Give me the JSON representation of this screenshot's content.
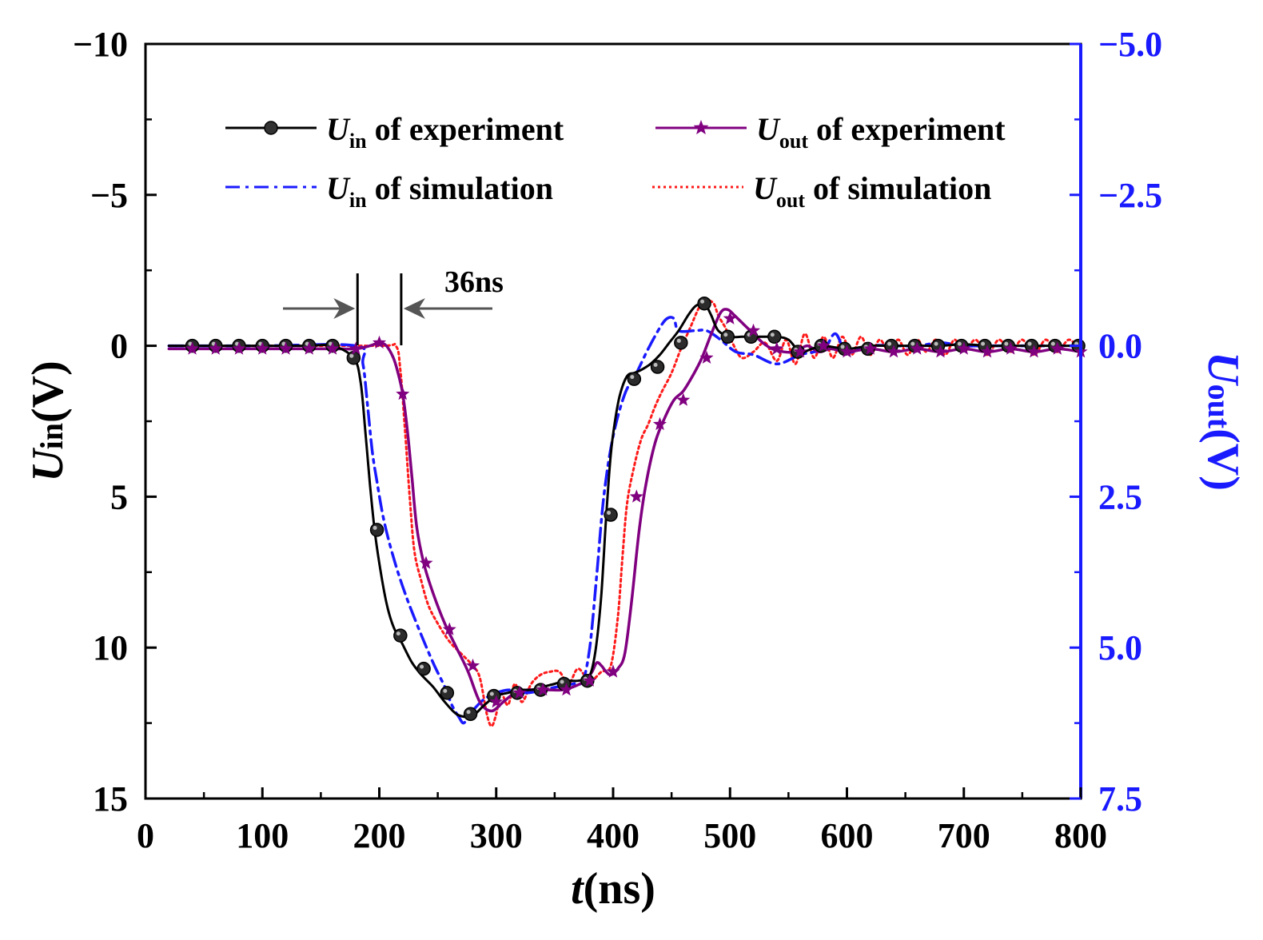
{
  "chart_data": {
    "type": "line",
    "title": "",
    "xlabel": {
      "italic": "t",
      "rest": "(ns)"
    },
    "ylabel_left": {
      "italic": "U",
      "sub": "in",
      "rest": "(V)"
    },
    "ylabel_right": {
      "italic": "U",
      "sub": "out",
      "rest": "(V)"
    },
    "xlim": [
      0,
      800
    ],
    "ylim_left": [
      -10,
      15
    ],
    "ylim_right": [
      -5.0,
      7.5
    ],
    "x_ticks": [
      "0",
      "100",
      "200",
      "300",
      "400",
      "500",
      "600",
      "700",
      "800"
    ],
    "y_left_ticks": [
      "−10",
      "−5",
      "0",
      "5",
      "10",
      "15"
    ],
    "y_right_ticks": [
      "−5.0",
      "−2.5",
      "0.0",
      "2.5",
      "5.0",
      "7.5"
    ],
    "legend_position": "top",
    "annotation": {
      "label": "36ns",
      "t_start": 180,
      "t_end": 216
    },
    "colors": {
      "axis_left": "#000000",
      "axis_right": "#1a1aff",
      "uin_exp": "#000000",
      "uout_exp": "#800080",
      "uin_sim": "#1a1aff",
      "uout_sim": "#ff1a1a"
    },
    "series": [
      {
        "id": "uin_exp",
        "name": "of experiment",
        "sym": "U",
        "sub": "in",
        "axis": "left",
        "style": "solid-dots",
        "x": [
          20,
          40,
          60,
          80,
          100,
          120,
          140,
          160,
          178,
          184,
          188,
          192,
          196,
          200,
          206,
          212,
          220,
          228,
          236,
          246,
          256,
          266,
          276,
          282,
          290,
          300,
          310,
          320,
          330,
          340,
          350,
          360,
          370,
          378,
          382,
          386,
          390,
          394,
          398,
          402,
          406,
          412,
          418,
          424,
          432,
          440,
          448,
          456,
          464,
          470,
          476,
          480,
          484,
          490,
          500,
          510,
          520,
          530,
          540,
          550,
          560,
          570,
          580,
          600,
          620,
          640,
          660,
          680,
          700,
          720,
          740,
          760,
          780,
          800
        ],
        "y": [
          0,
          0,
          0,
          0,
          0,
          0,
          0,
          0,
          0.4,
          1.2,
          2.8,
          4.6,
          6.1,
          7.2,
          8.5,
          9.3,
          9.9,
          10.5,
          10.9,
          11.3,
          11.8,
          12.2,
          12.3,
          12.2,
          11.9,
          11.6,
          11.5,
          11.4,
          11.4,
          11.3,
          11.2,
          11.1,
          11.1,
          11.0,
          10.7,
          9.8,
          8.2,
          5.7,
          3.6,
          2.4,
          1.6,
          1.0,
          0.9,
          0.8,
          0.6,
          0.3,
          -0.1,
          -0.5,
          -1.0,
          -1.3,
          -1.4,
          -1.3,
          -1.0,
          -0.5,
          -0.3,
          -0.3,
          -0.3,
          -0.3,
          -0.3,
          -0.2,
          0.2,
          0.1,
          0,
          0.1,
          0,
          0,
          0,
          0,
          -0.05,
          0,
          0,
          0,
          0,
          0
        ],
        "markers_x": [
          40,
          60,
          80,
          100,
          120,
          140,
          160,
          178,
          198,
          218,
          238,
          258,
          278,
          298,
          318,
          338,
          358,
          378,
          398,
          418,
          438,
          458,
          478,
          498,
          518,
          538,
          558,
          578,
          598,
          618,
          638,
          658,
          678,
          698,
          718,
          738,
          758,
          778,
          798
        ],
        "markers_y": [
          0,
          0,
          0,
          0,
          0,
          0,
          0,
          0.4,
          6.1,
          9.6,
          10.7,
          11.5,
          12.2,
          11.6,
          11.5,
          11.4,
          11.2,
          11.1,
          5.6,
          1.1,
          0.7,
          -0.1,
          -1.4,
          -0.3,
          -0.3,
          -0.3,
          0.2,
          0,
          0.1,
          0.1,
          0,
          0,
          0,
          0,
          0,
          0,
          0,
          0,
          0
        ]
      },
      {
        "id": "uout_exp",
        "name": "of experiment",
        "sym": "U",
        "sub": "out",
        "axis": "right",
        "style": "solid-stars",
        "x": [
          20,
          40,
          60,
          80,
          100,
          120,
          140,
          160,
          180,
          192,
          200,
          206,
          212,
          216,
          220,
          224,
          228,
          232,
          238,
          246,
          256,
          266,
          276,
          286,
          296,
          306,
          316,
          326,
          336,
          346,
          356,
          366,
          376,
          382,
          386,
          390,
          394,
          398,
          404,
          410,
          416,
          422,
          428,
          436,
          444,
          452,
          460,
          468,
          476,
          484,
          492,
          498,
          504,
          512,
          520,
          528,
          536,
          546,
          556,
          566,
          576,
          586,
          600,
          620,
          640,
          660,
          680,
          700,
          720,
          740,
          760,
          780,
          800
        ],
        "y": [
          0.05,
          0.05,
          0.05,
          0.05,
          0.05,
          0.05,
          0.05,
          0.05,
          0.05,
          0.0,
          -0.05,
          0.0,
          0.2,
          0.45,
          0.8,
          1.4,
          2.2,
          3.0,
          3.6,
          4.1,
          4.6,
          5.0,
          5.4,
          5.9,
          6.05,
          5.9,
          5.75,
          5.7,
          5.7,
          5.7,
          5.7,
          5.65,
          5.55,
          5.4,
          5.25,
          5.3,
          5.4,
          5.45,
          5.35,
          5.1,
          4.2,
          3.1,
          2.3,
          1.6,
          1.2,
          0.9,
          0.75,
          0.5,
          0.2,
          -0.2,
          -0.55,
          -0.6,
          -0.5,
          -0.35,
          -0.2,
          -0.05,
          0.05,
          0.1,
          0.1,
          0.0,
          0.1,
          0.05,
          0.1,
          0.05,
          0.1,
          0.05,
          0.1,
          0.05,
          0.1,
          0.05,
          0.1,
          0.05,
          0.1
        ],
        "markers_x": [
          40,
          60,
          80,
          100,
          120,
          140,
          160,
          180,
          200,
          220,
          240,
          260,
          280,
          300,
          320,
          340,
          360,
          380,
          400,
          420,
          440,
          460,
          480,
          500,
          520,
          540,
          560,
          580,
          600,
          620,
          640,
          660,
          680,
          700,
          720,
          740,
          760,
          780,
          800
        ],
        "markers_y": [
          0.05,
          0.05,
          0.05,
          0.05,
          0.05,
          0.05,
          0.05,
          0.05,
          -0.05,
          0.8,
          3.6,
          4.7,
          5.3,
          5.9,
          5.75,
          5.7,
          5.7,
          5.55,
          5.4,
          2.5,
          1.3,
          0.9,
          0.2,
          -0.45,
          -0.25,
          0.05,
          0.1,
          0.0,
          0.1,
          0.05,
          0.1,
          0.05,
          0.1,
          0.05,
          0.1,
          0.05,
          0.1,
          0.05,
          0.1
        ]
      },
      {
        "id": "uin_sim",
        "name": "of simulation",
        "sym": "U",
        "sub": "in",
        "axis": "left",
        "style": "dashdot",
        "x": [
          20,
          100,
          180,
          186,
          190,
          194,
          198,
          204,
          212,
          222,
          234,
          246,
          256,
          262,
          268,
          272,
          276,
          282,
          290,
          300,
          312,
          326,
          340,
          352,
          366,
          374,
          380,
          386,
          392,
          400,
          410,
          420,
          430,
          440,
          446,
          452,
          456,
          470,
          480,
          492,
          505,
          520,
          540,
          560,
          580,
          590,
          600,
          620,
          640,
          660,
          680,
          700,
          720,
          740,
          760,
          780,
          800
        ],
        "y": [
          0,
          0,
          0,
          0.6,
          2.0,
          3.5,
          4.5,
          5.8,
          7.0,
          8.2,
          9.4,
          10.5,
          11.3,
          11.9,
          12.3,
          12.5,
          12.3,
          12.0,
          11.7,
          11.5,
          11.4,
          11.5,
          11.4,
          11.3,
          11.2,
          11.1,
          10.0,
          7.6,
          5.0,
          3.0,
          1.6,
          0.9,
          0.1,
          -0.6,
          -0.9,
          -0.9,
          -0.5,
          -0.5,
          -0.5,
          -0.2,
          0.2,
          0.3,
          0.6,
          0.3,
          0.1,
          -0.4,
          0.2,
          0,
          0,
          0,
          -0.1,
          0,
          0,
          0,
          0,
          0,
          0
        ]
      },
      {
        "id": "uout_sim",
        "name": "of simulation",
        "sym": "U",
        "sub": "out",
        "axis": "right",
        "style": "dotted",
        "x": [
          20,
          100,
          200,
          214,
          218,
          222,
          226,
          230,
          236,
          242,
          250,
          260,
          270,
          280,
          286,
          292,
          296,
          300,
          304,
          310,
          316,
          322,
          330,
          338,
          346,
          354,
          362,
          370,
          380,
          390,
          398,
          404,
          408,
          412,
          418,
          424,
          430,
          436,
          442,
          450,
          458,
          466,
          474,
          480,
          486,
          490,
          496,
          502,
          510,
          520,
          530,
          540,
          548,
          556,
          564,
          572,
          580,
          588,
          596,
          604,
          612,
          620,
          628,
          636,
          644,
          652,
          660,
          668,
          676,
          684,
          692,
          700,
          710,
          720,
          730,
          740,
          750,
          760,
          770,
          780,
          790,
          800
        ],
        "y": [
          0,
          0,
          0,
          0,
          0.4,
          1.4,
          2.5,
          3.4,
          3.9,
          4.3,
          4.6,
          4.9,
          5.1,
          5.3,
          5.5,
          6.1,
          6.3,
          6.1,
          5.75,
          5.95,
          5.6,
          5.9,
          5.6,
          5.45,
          5.4,
          5.4,
          5.6,
          5.35,
          5.55,
          5.4,
          5.3,
          4.5,
          3.5,
          2.6,
          2.0,
          1.55,
          1.3,
          1.0,
          0.75,
          0.45,
          0.05,
          -0.3,
          -0.65,
          -0.75,
          -0.7,
          -0.5,
          -0.3,
          -0.05,
          0.2,
          0.1,
          -0.05,
          0.25,
          -0.1,
          0.3,
          -0.2,
          0.2,
          -0.15,
          0.2,
          -0.15,
          0.15,
          -0.15,
          0.15,
          -0.1,
          0.1,
          -0.1,
          0.15,
          -0.1,
          0.1,
          -0.1,
          0.15,
          -0.1,
          0.1,
          -0.1,
          0.15,
          -0.1,
          0.1,
          -0.1,
          0.15,
          -0.1,
          0.1,
          -0.1,
          0.1
        ]
      }
    ]
  }
}
